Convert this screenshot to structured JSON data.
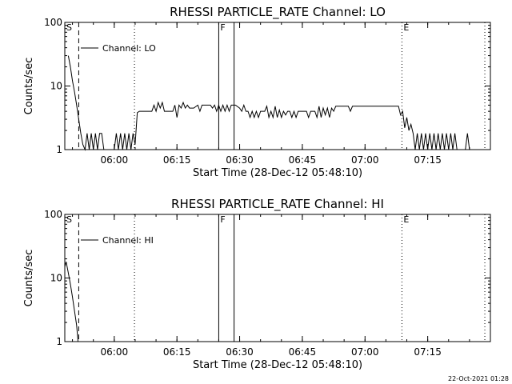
{
  "footer_timestamp": "22-Oct-2021 01:28",
  "chart_data": [
    {
      "type": "line",
      "title": "RHESSI PARTICLE_RATE Channel: LO",
      "xlabel": "Start Time (28-Dec-12 05:48:10)",
      "ylabel": "Counts/sec",
      "yscale": "log",
      "ylim": [
        1,
        100
      ],
      "xlim": [
        "05:48:10",
        "07:30:00"
      ],
      "x_ticks": [
        "06:00",
        "06:15",
        "06:30",
        "06:45",
        "07:00",
        "07:15"
      ],
      "y_ticks": [
        "1",
        "10",
        "100"
      ],
      "legend": "Channel: LO",
      "markers": [
        {
          "label": "S",
          "time": "05:48:10",
          "style": "solid"
        },
        {
          "label": "",
          "time": "05:51:30",
          "style": "dashed"
        },
        {
          "label": "",
          "time": "06:04:50",
          "style": "dotted"
        },
        {
          "label": "F",
          "time": "06:25:00",
          "style": "solid"
        },
        {
          "label": "",
          "time": "06:28:40",
          "style": "solid"
        },
        {
          "label": "E",
          "time": "07:08:50",
          "style": "dotted"
        },
        {
          "label": "",
          "time": "07:28:40",
          "style": "dotted"
        }
      ],
      "series": [
        {
          "values": [
            [
              "05:49:00",
              30
            ],
            [
              "05:49:30",
              20
            ],
            [
              "05:50:00",
              12
            ],
            [
              "05:50:30",
              8
            ],
            [
              "05:51:00",
              5
            ],
            [
              "05:51:30",
              3
            ],
            [
              "05:52:00",
              1.8
            ],
            [
              "05:52:30",
              1.2
            ],
            [
              "05:53:00",
              1
            ],
            [
              "05:53:30",
              1.8
            ],
            [
              "05:54:00",
              1
            ],
            [
              "05:54:30",
              1.8
            ],
            [
              "05:55:00",
              1
            ],
            [
              "05:55:30",
              1.8
            ],
            [
              "05:56:00",
              1
            ],
            [
              "05:56:30",
              1.8
            ],
            [
              "05:57:00",
              1.8
            ],
            [
              "05:57:30",
              1
            ],
            [
              "05:58:00",
              1
            ],
            [
              "05:59:00",
              1
            ],
            [
              "06:00:00",
              1
            ],
            [
              "06:00:30",
              1.8
            ],
            [
              "06:01:00",
              1
            ],
            [
              "06:01:30",
              1.8
            ],
            [
              "06:02:00",
              1
            ],
            [
              "06:02:30",
              1.8
            ],
            [
              "06:03:00",
              1
            ],
            [
              "06:03:30",
              1.8
            ],
            [
              "06:04:00",
              1
            ],
            [
              "06:04:30",
              1.8
            ],
            [
              "06:05:00",
              1.2
            ],
            [
              "06:05:30",
              3.8
            ],
            [
              "06:06:00",
              4
            ],
            [
              "06:08:00",
              4
            ],
            [
              "06:09:00",
              4
            ],
            [
              "06:09:30",
              5
            ],
            [
              "06:10:00",
              4
            ],
            [
              "06:10:30",
              5.5
            ],
            [
              "06:11:00",
              4.5
            ],
            [
              "06:11:30",
              5.5
            ],
            [
              "06:12:00",
              4
            ],
            [
              "06:13:00",
              4
            ],
            [
              "06:14:00",
              4
            ],
            [
              "06:14:30",
              5
            ],
            [
              "06:15:00",
              3.2
            ],
            [
              "06:15:30",
              5
            ],
            [
              "06:16:00",
              4.5
            ],
            [
              "06:16:30",
              5.5
            ],
            [
              "06:17:00",
              4.5
            ],
            [
              "06:17:30",
              5
            ],
            [
              "06:18:00",
              4.5
            ],
            [
              "06:19:00",
              4.5
            ],
            [
              "06:20:00",
              5
            ],
            [
              "06:20:30",
              4
            ],
            [
              "06:21:00",
              5
            ],
            [
              "06:22:00",
              5
            ],
            [
              "06:23:00",
              5
            ],
            [
              "06:23:30",
              4.5
            ],
            [
              "06:24:00",
              5
            ],
            [
              "06:24:30",
              4
            ],
            [
              "06:25:00",
              5
            ],
            [
              "06:25:30",
              4
            ],
            [
              "06:26:00",
              5
            ],
            [
              "06:26:30",
              4
            ],
            [
              "06:27:00",
              5
            ],
            [
              "06:27:30",
              4
            ],
            [
              "06:28:00",
              5
            ],
            [
              "06:29:00",
              5
            ],
            [
              "06:30:00",
              4.5
            ],
            [
              "06:30:30",
              4
            ],
            [
              "06:31:00",
              5
            ],
            [
              "06:31:30",
              4
            ],
            [
              "06:32:00",
              4
            ],
            [
              "06:32:30",
              3.2
            ],
            [
              "06:33:00",
              4
            ],
            [
              "06:33:30",
              3.2
            ],
            [
              "06:34:00",
              4
            ],
            [
              "06:34:30",
              3.2
            ],
            [
              "06:35:00",
              4
            ],
            [
              "06:36:00",
              4
            ],
            [
              "06:36:30",
              4.8
            ],
            [
              "06:37:00",
              3.2
            ],
            [
              "06:37:30",
              4
            ],
            [
              "06:38:00",
              3.2
            ],
            [
              "06:38:30",
              4.8
            ],
            [
              "06:39:00",
              3.2
            ],
            [
              "06:39:30",
              4.2
            ],
            [
              "06:40:00",
              3.2
            ],
            [
              "06:40:30",
              4
            ],
            [
              "06:41:00",
              3.5
            ],
            [
              "06:41:30",
              4
            ],
            [
              "06:42:00",
              4
            ],
            [
              "06:42:30",
              3.2
            ],
            [
              "06:43:00",
              4
            ],
            [
              "06:43:30",
              3.2
            ],
            [
              "06:44:00",
              4
            ],
            [
              "06:45:00",
              4
            ],
            [
              "06:46:00",
              4
            ],
            [
              "06:46:30",
              3.2
            ],
            [
              "06:47:00",
              4
            ],
            [
              "06:48:00",
              4
            ],
            [
              "06:48:30",
              3.2
            ],
            [
              "06:49:00",
              4.8
            ],
            [
              "06:49:30",
              3.2
            ],
            [
              "06:50:00",
              4.5
            ],
            [
              "06:50:30",
              3.5
            ],
            [
              "06:51:00",
              4.5
            ],
            [
              "06:51:30",
              3.2
            ],
            [
              "06:52:00",
              4.5
            ],
            [
              "06:52:30",
              4
            ],
            [
              "06:53:00",
              4.8
            ],
            [
              "06:54:00",
              4.8
            ],
            [
              "06:55:00",
              4.8
            ],
            [
              "06:56:00",
              4.8
            ],
            [
              "06:56:30",
              4
            ],
            [
              "06:57:00",
              4.8
            ],
            [
              "06:58:00",
              4.8
            ],
            [
              "06:59:00",
              4.8
            ],
            [
              "07:00:00",
              4.8
            ],
            [
              "07:01:00",
              4.8
            ],
            [
              "07:02:00",
              4.8
            ],
            [
              "07:03:00",
              4.8
            ],
            [
              "07:04:00",
              4.8
            ],
            [
              "07:05:00",
              4.8
            ],
            [
              "07:06:00",
              4.8
            ],
            [
              "07:07:00",
              4.8
            ],
            [
              "07:08:00",
              4.8
            ],
            [
              "07:08:30",
              3.5
            ],
            [
              "07:09:00",
              4
            ],
            [
              "07:09:30",
              2.2
            ],
            [
              "07:10:00",
              3.2
            ],
            [
              "07:10:30",
              2
            ],
            [
              "07:11:00",
              2.5
            ],
            [
              "07:11:30",
              1.8
            ],
            [
              "07:12:00",
              1
            ],
            [
              "07:12:30",
              1.8
            ],
            [
              "07:13:00",
              1
            ],
            [
              "07:13:30",
              1.8
            ],
            [
              "07:14:00",
              1
            ],
            [
              "07:14:30",
              1.8
            ],
            [
              "07:15:00",
              1
            ],
            [
              "07:15:30",
              1.8
            ],
            [
              "07:16:00",
              1
            ],
            [
              "07:16:30",
              1.8
            ],
            [
              "07:17:00",
              1
            ],
            [
              "07:17:30",
              1.8
            ],
            [
              "07:18:00",
              1
            ],
            [
              "07:18:30",
              1.8
            ],
            [
              "07:19:00",
              1
            ],
            [
              "07:19:30",
              1.8
            ],
            [
              "07:20:00",
              1
            ],
            [
              "07:20:30",
              1.8
            ],
            [
              "07:21:00",
              1
            ],
            [
              "07:21:30",
              1.8
            ],
            [
              "07:22:00",
              1
            ],
            [
              "07:23:00",
              1
            ],
            [
              "07:24:00",
              1
            ],
            [
              "07:24:30",
              1.8
            ],
            [
              "07:25:00",
              1
            ]
          ]
        }
      ]
    },
    {
      "type": "line",
      "title": "RHESSI PARTICLE_RATE Channel: HI",
      "xlabel": "Start Time (28-Dec-12 05:48:10)",
      "ylabel": "Counts/sec",
      "yscale": "log",
      "ylim": [
        1,
        100
      ],
      "xlim": [
        "05:48:10",
        "07:30:00"
      ],
      "x_ticks": [
        "06:00",
        "06:15",
        "06:30",
        "06:45",
        "07:00",
        "07:15"
      ],
      "y_ticks": [
        "1",
        "10",
        "100"
      ],
      "legend": "Channel: HI",
      "markers": [
        {
          "label": "S",
          "time": "05:48:10",
          "style": "solid"
        },
        {
          "label": "",
          "time": "05:51:30",
          "style": "dashed"
        },
        {
          "label": "",
          "time": "06:04:50",
          "style": "dotted"
        },
        {
          "label": "F",
          "time": "06:25:00",
          "style": "solid"
        },
        {
          "label": "",
          "time": "06:28:40",
          "style": "solid"
        },
        {
          "label": "E",
          "time": "07:08:50",
          "style": "dotted"
        },
        {
          "label": "",
          "time": "07:28:40",
          "style": "dotted"
        }
      ],
      "series": [
        {
          "values": [
            [
              "05:48:10",
              15
            ],
            [
              "05:48:30",
              18
            ],
            [
              "05:49:00",
              12
            ],
            [
              "05:49:30",
              8
            ],
            [
              "05:50:00",
              5
            ],
            [
              "05:50:30",
              3
            ],
            [
              "05:51:00",
              1.8
            ],
            [
              "05:51:20",
              1
            ]
          ]
        }
      ]
    }
  ]
}
